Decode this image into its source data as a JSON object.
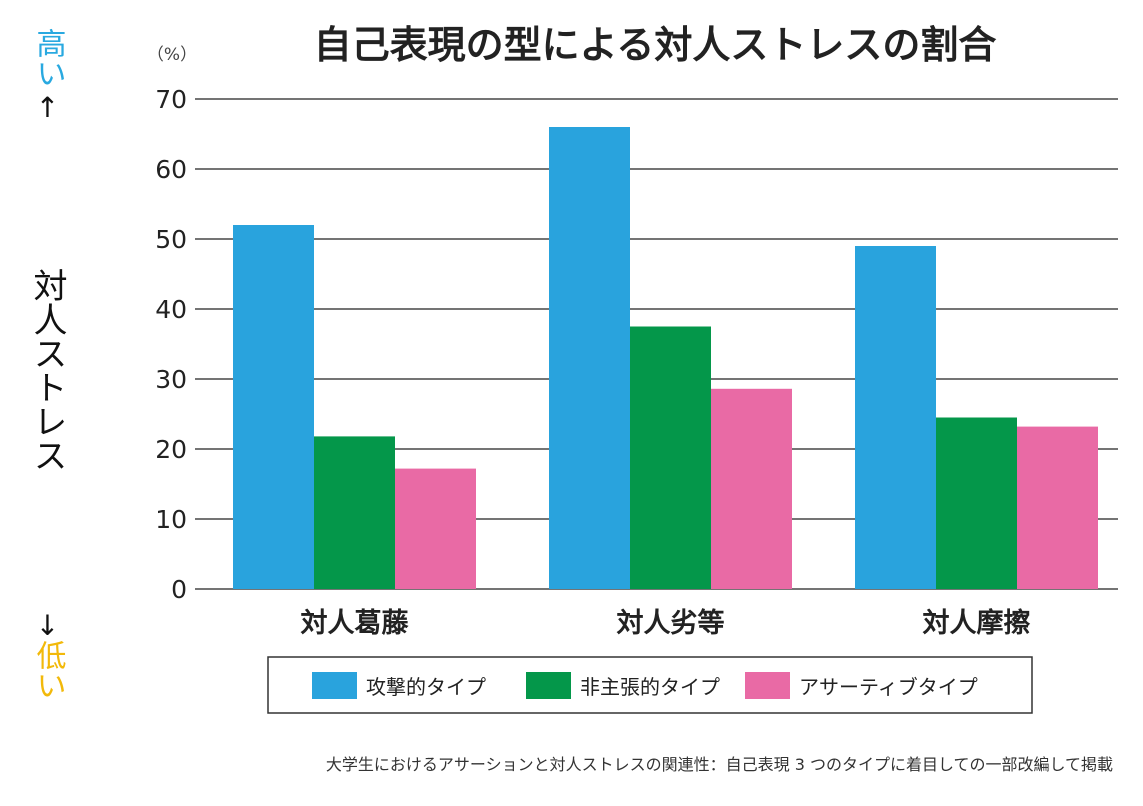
{
  "side_labels": {
    "high": "高い",
    "up_arrow": "↑",
    "middle": "対人ストレス",
    "down_arrow": "↓",
    "low": "低い"
  },
  "footnote": "大学生におけるアサーションと対人ストレスの関連性：自己表現 3 つのタイプに着目しての一部改編して掲載",
  "chart_data": {
    "type": "bar",
    "title": "自己表現の型による対人ストレスの割合",
    "ylabel": "（%）",
    "xlabel": "",
    "ylim": [
      0,
      70
    ],
    "yticks": [
      0,
      10,
      20,
      30,
      40,
      50,
      60,
      70
    ],
    "grid": true,
    "legend_position": "bottom",
    "categories": [
      "対人葛藤",
      "対人劣等",
      "対人摩擦"
    ],
    "series": [
      {
        "name": "攻撃的タイプ",
        "color": "#29a3dd",
        "values": [
          52,
          66,
          49
        ]
      },
      {
        "name": "非主張的タイプ",
        "color": "#04974a",
        "values": [
          21.8,
          37.5,
          24.5
        ]
      },
      {
        "name": "アサーティブタイプ",
        "color": "#e96aa5",
        "values": [
          17.2,
          28.6,
          23.2
        ]
      }
    ]
  }
}
